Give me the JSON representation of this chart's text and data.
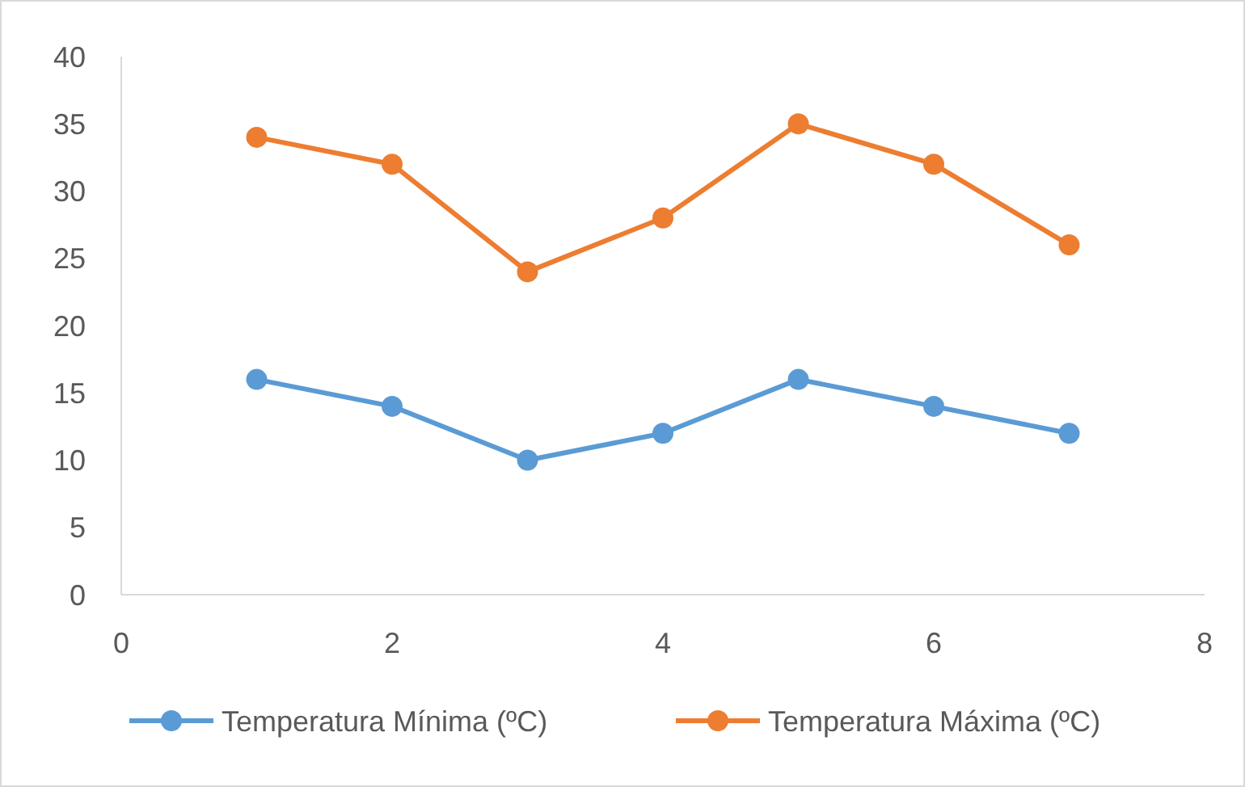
{
  "chart_data": {
    "type": "line",
    "x": [
      1,
      2,
      3,
      4,
      5,
      6,
      7
    ],
    "xlim": [
      0,
      8
    ],
    "xticks": [
      0,
      2,
      4,
      6,
      8
    ],
    "ylim": [
      0,
      40
    ],
    "yticks": [
      0,
      5,
      10,
      15,
      20,
      25,
      30,
      35,
      40
    ],
    "grid": false,
    "legend": "bottom",
    "marker": "circle",
    "line_style": "solid",
    "series": [
      {
        "name": "Temperatura Mínima (ºC)",
        "color": "#5b9bd5",
        "values": [
          16,
          14,
          10,
          12,
          16,
          14,
          12
        ]
      },
      {
        "name": "Temperatura Máxima (ºC)",
        "color": "#ed7d31",
        "values": [
          34,
          32,
          24,
          28,
          35,
          32,
          26
        ]
      }
    ]
  }
}
